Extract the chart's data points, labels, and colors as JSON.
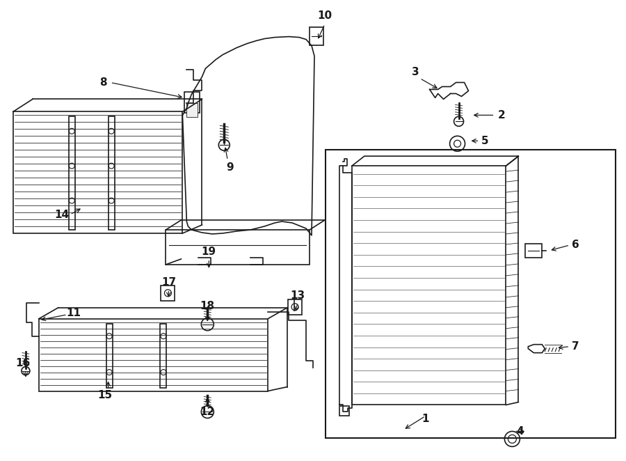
{
  "bg_color": "#ffffff",
  "line_color": "#1a1a1a",
  "label_fontsize": 11,
  "figsize": [
    9.0,
    6.62
  ],
  "dpi": 100
}
